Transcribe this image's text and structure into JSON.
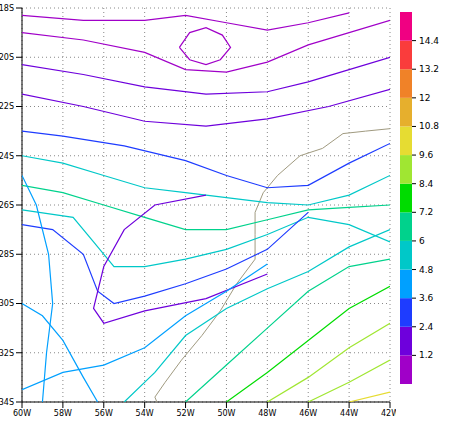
{
  "chart_data": {
    "type": "streamline",
    "xlim": [
      -60,
      -42
    ],
    "xticks": [
      {
        "value": -60,
        "label": "60W"
      },
      {
        "value": -58,
        "label": "58W"
      },
      {
        "value": -56,
        "label": "56W"
      },
      {
        "value": -54,
        "label": "54W"
      },
      {
        "value": -52,
        "label": "52W"
      },
      {
        "value": -50,
        "label": "50W"
      },
      {
        "value": -48,
        "label": "48W"
      },
      {
        "value": -46,
        "label": "46W"
      },
      {
        "value": -44,
        "label": "44W"
      },
      {
        "value": -42,
        "label": "42W"
      }
    ],
    "ylim": [
      -34,
      -18
    ],
    "yticks": [
      {
        "value": -18,
        "label": "18S"
      },
      {
        "value": -20,
        "label": "20S"
      },
      {
        "value": -22,
        "label": "22S"
      },
      {
        "value": -24,
        "label": "24S"
      },
      {
        "value": -26,
        "label": "26S"
      },
      {
        "value": -28,
        "label": "28S"
      },
      {
        "value": -30,
        "label": "30S"
      },
      {
        "value": -32,
        "label": "32S"
      },
      {
        "value": -34,
        "label": "34S"
      }
    ],
    "grid": true,
    "colorbar": {
      "levels": [
        1.2,
        2.4,
        3.6,
        4.8,
        6,
        7.2,
        8.4,
        9.6,
        10.8,
        12,
        13.2,
        14.4
      ],
      "colors": [
        "#a000c8",
        "#6e00dc",
        "#1e3cff",
        "#00a0ff",
        "#00c8c8",
        "#00d28c",
        "#00dc00",
        "#a0e632",
        "#e6dc32",
        "#e6af2d",
        "#f08228",
        "#fa3c3c",
        "#f00082"
      ]
    },
    "coastline": [
      [
        -42,
        -22.9
      ],
      [
        -43.2,
        -23
      ],
      [
        -44.3,
        -23.1
      ],
      [
        -45.3,
        -23.7
      ],
      [
        -46.4,
        -24
      ],
      [
        -47.5,
        -24.8
      ],
      [
        -48.2,
        -25.5
      ],
      [
        -48.6,
        -26.3
      ],
      [
        -48.6,
        -27.2
      ],
      [
        -48.6,
        -28.2
      ],
      [
        -49.5,
        -29.2
      ],
      [
        -50.3,
        -30.3
      ],
      [
        -51.2,
        -31.3
      ],
      [
        -52.2,
        -32.3
      ],
      [
        -53,
        -33.2
      ],
      [
        -53.5,
        -33.8
      ],
      [
        -53.4,
        -34
      ]
    ],
    "streamlines": [
      {
        "speed": 1.0,
        "points": [
          [
            -60,
            -19
          ],
          [
            -57,
            -19.3
          ],
          [
            -54,
            -19.8
          ],
          [
            -52,
            -20.5
          ],
          [
            -50,
            -20.6
          ],
          [
            -48,
            -20.2
          ],
          [
            -46,
            -19.5
          ],
          [
            -44,
            -19
          ],
          [
            -42,
            -18.5
          ]
        ]
      },
      {
        "speed": 0.8,
        "points": [
          [
            -60,
            -18.3
          ],
          [
            -57,
            -18.5
          ],
          [
            -54,
            -18.5
          ],
          [
            -52,
            -18.3
          ],
          [
            -50,
            -18.6
          ],
          [
            -48,
            -18.9
          ],
          [
            -46,
            -18.6
          ],
          [
            -44,
            -18.2
          ]
        ]
      },
      {
        "speed": 0.6,
        "points": [
          [
            -52.3,
            -19.6
          ],
          [
            -51.8,
            -19
          ],
          [
            -51,
            -18.8
          ],
          [
            -50.2,
            -19.1
          ],
          [
            -49.8,
            -19.6
          ],
          [
            -50.3,
            -20.1
          ],
          [
            -51,
            -20.3
          ],
          [
            -51.8,
            -20.1
          ],
          [
            -52.3,
            -19.6
          ]
        ]
      },
      {
        "speed": 1.6,
        "points": [
          [
            -60,
            -20.3
          ],
          [
            -57,
            -20.7
          ],
          [
            -54,
            -21.2
          ],
          [
            -51,
            -21.5
          ],
          [
            -48,
            -21.4
          ],
          [
            -46,
            -21
          ],
          [
            -44,
            -20.5
          ],
          [
            -42,
            -20
          ]
        ]
      },
      {
        "speed": 2.2,
        "points": [
          [
            -60,
            -21.5
          ],
          [
            -57,
            -22
          ],
          [
            -54,
            -22.6
          ],
          [
            -51,
            -22.8
          ],
          [
            -48,
            -22.5
          ],
          [
            -45,
            -22
          ],
          [
            -42,
            -21.3
          ]
        ]
      },
      {
        "speed": 3.5,
        "points": [
          [
            -42,
            -23.5
          ],
          [
            -44,
            -24.3
          ],
          [
            -46,
            -25.2
          ],
          [
            -48,
            -25.3
          ],
          [
            -50,
            -24.8
          ],
          [
            -52,
            -24.2
          ],
          [
            -55,
            -23.6
          ],
          [
            -58,
            -23.2
          ],
          [
            -60,
            -23
          ]
        ]
      },
      {
        "speed": 5,
        "points": [
          [
            -42,
            -24.8
          ],
          [
            -44,
            -25.6
          ],
          [
            -46,
            -26
          ],
          [
            -48,
            -25.9
          ],
          [
            -50,
            -25.7
          ],
          [
            -52,
            -25.5
          ],
          [
            -54,
            -25.3
          ],
          [
            -56,
            -24.8
          ],
          [
            -58,
            -24.3
          ],
          [
            -60,
            -24
          ]
        ]
      },
      {
        "speed": 6,
        "points": [
          [
            -42,
            -26
          ],
          [
            -44,
            -26.1
          ],
          [
            -46,
            -26.2
          ],
          [
            -48,
            -26.6
          ],
          [
            -50,
            -27
          ],
          [
            -52,
            -27
          ],
          [
            -54,
            -26.5
          ],
          [
            -56,
            -26
          ],
          [
            -58,
            -25.5
          ],
          [
            -60,
            -25.2
          ]
        ]
      },
      {
        "speed": 5.5,
        "points": [
          [
            -42,
            -27.5
          ],
          [
            -44,
            -26.8
          ],
          [
            -46,
            -26.5
          ],
          [
            -48,
            -27.2
          ],
          [
            -50,
            -27.8
          ],
          [
            -52,
            -28.2
          ],
          [
            -54,
            -28.5
          ],
          [
            -55.5,
            -28.5
          ],
          [
            -56.5,
            -27.5
          ],
          [
            -57.5,
            -26.5
          ],
          [
            -60,
            -26.2
          ]
        ]
      },
      {
        "speed": 3,
        "points": [
          [
            -46,
            -26.3
          ],
          [
            -48,
            -27.8
          ],
          [
            -50,
            -28.6
          ],
          [
            -52,
            -29.2
          ],
          [
            -54,
            -29.7
          ],
          [
            -55.5,
            -30
          ],
          [
            -56.3,
            -29.5
          ],
          [
            -57,
            -28
          ],
          [
            -58.5,
            -27
          ],
          [
            -60,
            -26.8
          ]
        ]
      },
      {
        "speed": 1.5,
        "points": [
          [
            -48,
            -28.8
          ],
          [
            -51,
            -29.8
          ],
          [
            -54,
            -30.3
          ],
          [
            -56,
            -30.8
          ],
          [
            -56.5,
            -30.2
          ],
          [
            -56,
            -28.5
          ],
          [
            -55,
            -27
          ],
          [
            -53.5,
            -26
          ],
          [
            -51,
            -25.6
          ]
        ]
      },
      {
        "speed": 4,
        "points": [
          [
            -59,
            -34
          ],
          [
            -58.8,
            -32
          ],
          [
            -58.5,
            -30
          ],
          [
            -58.7,
            -28
          ],
          [
            -59.3,
            -26
          ],
          [
            -60,
            -24.8
          ]
        ]
      },
      {
        "speed": 4.2,
        "points": [
          [
            -60,
            -30
          ],
          [
            -59,
            -30.5
          ],
          [
            -58,
            -31.5
          ],
          [
            -57,
            -33
          ],
          [
            -56.3,
            -34
          ]
        ]
      },
      {
        "speed": 6.5,
        "points": [
          [
            -52,
            -34
          ],
          [
            -50,
            -32.5
          ],
          [
            -48,
            -31
          ],
          [
            -46,
            -29.5
          ],
          [
            -44,
            -28.5
          ],
          [
            -42,
            -28.2
          ]
        ]
      },
      {
        "speed": 7.5,
        "points": [
          [
            -50,
            -34
          ],
          [
            -48,
            -32.8
          ],
          [
            -46,
            -31.5
          ],
          [
            -44,
            -30.2
          ],
          [
            -42,
            -29.3
          ]
        ]
      },
      {
        "speed": 8.5,
        "points": [
          [
            -48,
            -34
          ],
          [
            -46,
            -33
          ],
          [
            -44,
            -31.8
          ],
          [
            -42,
            -30.8
          ]
        ]
      },
      {
        "speed": 9.2,
        "points": [
          [
            -46,
            -34
          ],
          [
            -44,
            -33.2
          ],
          [
            -42,
            -32.3
          ]
        ]
      },
      {
        "speed": 9.8,
        "points": [
          [
            -44,
            -34
          ],
          [
            -42,
            -33.6
          ]
        ]
      },
      {
        "speed": 5.5,
        "points": [
          [
            -55,
            -34
          ],
          [
            -53.5,
            -32.8
          ],
          [
            -52,
            -31.3
          ],
          [
            -50,
            -30.2
          ],
          [
            -48,
            -29.4
          ],
          [
            -46,
            -28.7
          ],
          [
            -44,
            -27.7
          ],
          [
            -42,
            -27
          ]
        ]
      },
      {
        "speed": 4.5,
        "points": [
          [
            -60,
            -33.5
          ],
          [
            -58,
            -32.8
          ],
          [
            -56,
            -32.5
          ],
          [
            -54,
            -31.8
          ],
          [
            -52,
            -30.5
          ],
          [
            -50,
            -29.5
          ],
          [
            -48,
            -28.4
          ]
        ]
      }
    ]
  }
}
